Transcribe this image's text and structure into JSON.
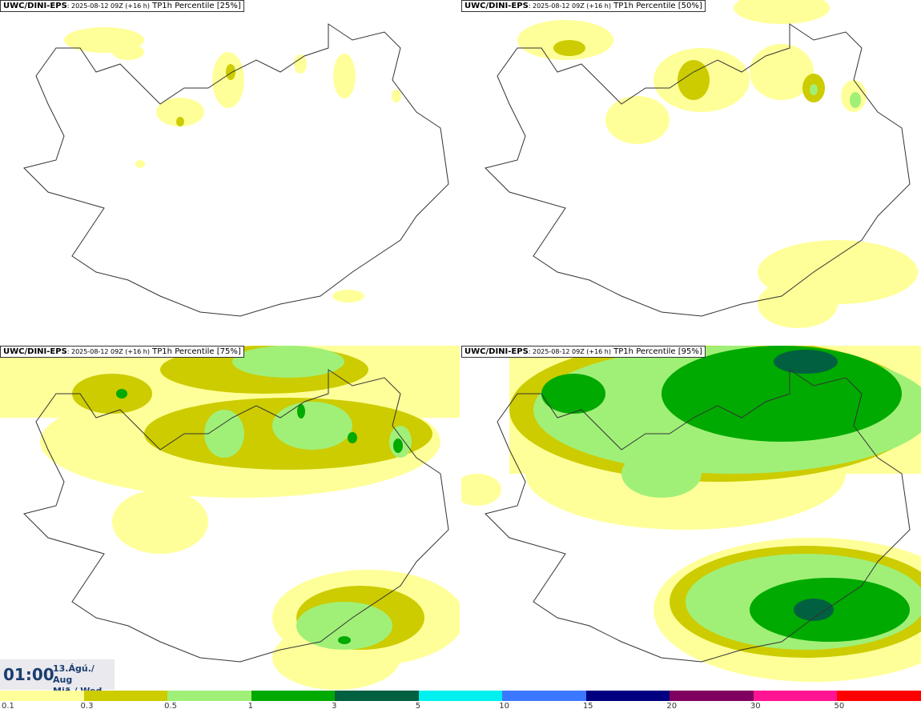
{
  "panels": [
    {
      "model": "UWC/DINI-EPS",
      "run": ": 2025-08-12 09Z (+16 h)",
      "label": "TP1h Percentile [25%]"
    },
    {
      "model": "UWC/DINI-EPS",
      "run": ": 2025-08-12 09Z (+16 h)",
      "label": "TP1h Percentile [50%]"
    },
    {
      "model": "UWC/DINI-EPS",
      "run": ": 2025-08-12 09Z (+16 h)",
      "label": "TP1h Percentile [75%]"
    },
    {
      "model": "UWC/DINI-EPS",
      "run": ": 2025-08-12 09Z (+16 h)",
      "label": "TP1h Percentile [95%]"
    }
  ],
  "valid_time": {
    "time": "01:00",
    "date_line1": "13.Ágú./ Aug",
    "date_line2": "Mið./ Wed"
  },
  "colorbar": {
    "colors": [
      "#ffff99",
      "#cccc00",
      "#a0f078",
      "#00aa00",
      "#006040",
      "#00f0f0",
      "#3c78ff",
      "#000080",
      "#800060",
      "#ff1493",
      "#ff0000"
    ],
    "ticks": [
      "0.1",
      "0.3",
      "0.5",
      "1",
      "3",
      "5",
      "10",
      "15",
      "20",
      "30",
      "50"
    ]
  },
  "colors": {
    "light": "#ffff99",
    "olive": "#cccc00",
    "lgreen": "#a0f078",
    "green": "#00aa00",
    "dgreen": "#006040"
  }
}
